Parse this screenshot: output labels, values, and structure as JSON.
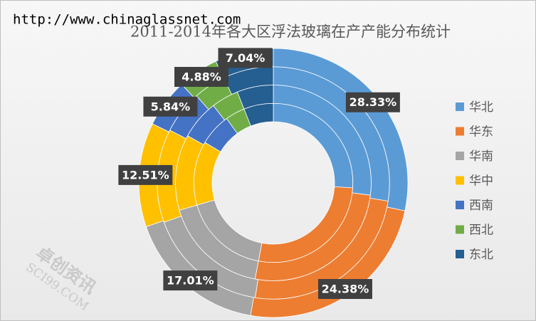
{
  "chart_data": {
    "type": "multi-donut",
    "title": "2011-2014年各大区浮法玻璃在产产能分布统计",
    "source": "http://www.chinaglassnet.com",
    "watermark": [
      "卓创资讯",
      "SCI99.COM"
    ],
    "categories": [
      "华北",
      "华东",
      "华南",
      "华中",
      "西南",
      "西北",
      "东北"
    ],
    "colors": [
      "#5b9bd5",
      "#ed7d31",
      "#a5a5a5",
      "#ffc000",
      "#4472c4",
      "#70ad47",
      "#255e91"
    ],
    "legend": "right",
    "series": [
      {
        "values": [
          26,
          27,
          17.5,
          13,
          6.5,
          4,
          6
        ]
      },
      {
        "values": [
          27,
          26,
          17.5,
          12.5,
          6.5,
          4.5,
          6
        ]
      },
      {
        "values": [
          27.5,
          25,
          17,
          13,
          6,
          4.5,
          7
        ]
      },
      {
        "values": [
          28.33,
          24.38,
          17.01,
          12.51,
          5.84,
          4.88,
          7.04
        ],
        "value_labels": [
          "28.33%",
          "24.38%",
          "17.01%",
          "12.51%",
          "5.84%",
          "4.88%",
          "7.04%"
        ]
      }
    ]
  }
}
